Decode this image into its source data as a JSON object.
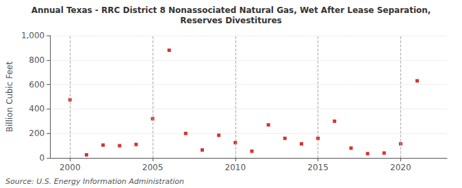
{
  "chart_data": {
    "type": "scatter",
    "title": "Annual Texas - RRC District 8 Nonassociated Natural Gas, Wet After Lease Separation,",
    "subtitle": "Reserves Divestitures",
    "y_label": "Billion Cubic Feet",
    "annotation": "Source: U.S. Energy Information Administration",
    "x": [
      2000,
      2001,
      2002,
      2003,
      2004,
      2005,
      2006,
      2007,
      2008,
      2009,
      2010,
      2011,
      2012,
      2013,
      2014,
      2015,
      2016,
      2017,
      2018,
      2019,
      2020,
      2021
    ],
    "values": [
      475,
      25,
      105,
      100,
      110,
      320,
      880,
      200,
      65,
      185,
      125,
      55,
      270,
      160,
      115,
      160,
      300,
      80,
      35,
      40,
      115,
      630
    ],
    "color": "#cc0000",
    "marker": "square",
    "xlim": [
      1998.8,
      2022.8
    ],
    "xticks": [
      2000,
      2005,
      2010,
      2015,
      2020
    ],
    "ylim": [
      0,
      1000
    ],
    "yticks": [
      0,
      200,
      400,
      600,
      800,
      {
        "value": 1000,
        "label": "1,000"
      }
    ],
    "grid": true
  }
}
